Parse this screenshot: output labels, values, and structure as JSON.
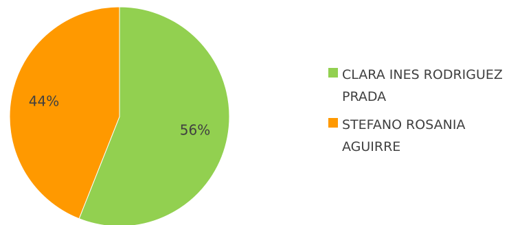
{
  "chart_data": {
    "type": "pie",
    "categories": [
      "CLARA INES RODRIGUEZ PRADA",
      "STEFANO ROSANIA AGUIRRE"
    ],
    "values": [
      56,
      44
    ],
    "value_labels": [
      "56%",
      "44%"
    ],
    "colors": [
      "#92D050",
      "#FF9900"
    ],
    "legend_position": "right"
  }
}
